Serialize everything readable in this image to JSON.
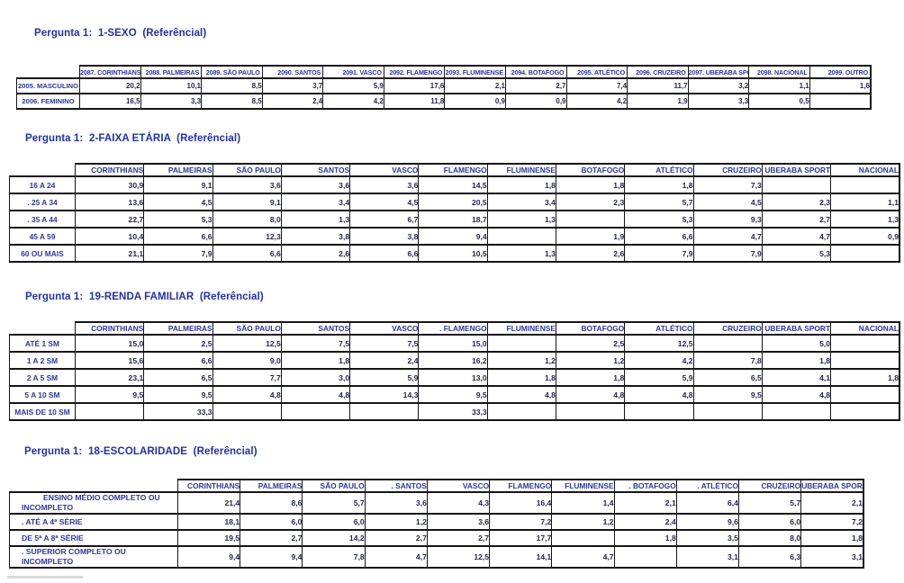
{
  "colors": {
    "title_text": "#2030b2",
    "header_text": "#2c36a4",
    "value_text": "#23284e",
    "border": "#161616",
    "background": "#ffffff"
  },
  "tables": [
    {
      "title": "Pergunta 1:  1-SEXO  (Referêncial)",
      "columns": [
        "2087. CORINTHIANS",
        "2088. PALMEIRAS",
        "2089. SÃO PAULO",
        "2090. SANTOS",
        "2091. VASCO",
        "2092. FLAMENGO",
        "2093. FLUMINENSE",
        "2094. BOTAFOGO",
        "2095. ATLÉTICO",
        "2096. CRUZEIRO",
        "2097. UBERABA SPORT",
        "2098. NACIONAL",
        "2099. OUTRO"
      ],
      "rows": [
        {
          "label": "2005. MASCULINO",
          "values": [
            "20,2",
            "10,1",
            "8,5",
            "3,7",
            "5,9",
            "17,6",
            "2,1",
            "2,7",
            "7,4",
            "11,7",
            "3,2",
            "1,1",
            "1,6"
          ]
        },
        {
          "label": "2006. FEMININO",
          "values": [
            "16,5",
            "3,3",
            "8,5",
            "2,4",
            "4,2",
            "11,8",
            "0,9",
            "0,9",
            "4,2",
            "1,9",
            "3,3",
            "0,5",
            ""
          ]
        }
      ]
    },
    {
      "title": "Pergunta 1:  2-FAIXA ETÁRIA  (Referêncial)",
      "columns": [
        "CORINTHIANS",
        "PALMEIRAS",
        "SÃO PAULO",
        "SANTOS",
        "VASCO",
        "FLAMENGO",
        "FLUMINENSE",
        "BOTAFOGO",
        "ATLÉTICO",
        "CRUZEIRO",
        "UBERABA SPORT",
        "NACIONAL"
      ],
      "rows": [
        {
          "label": "16 A 24",
          "values": [
            "30,9",
            "9,1",
            "3,6",
            "3,6",
            "3,6",
            "14,5",
            "1,8",
            "1,8",
            "1,8",
            "7,3",
            "",
            ""
          ]
        },
        {
          "label": ". 25 A 34",
          "values": [
            "13,6",
            "4,5",
            "9,1",
            "3,4",
            "4,5",
            "20,5",
            "3,4",
            "2,3",
            "5,7",
            "4,5",
            "2,3",
            "1,1"
          ]
        },
        {
          "label": ". 35 A 44",
          "values": [
            "22,7",
            "5,3",
            "8,0",
            "1,3",
            "6,7",
            "18,7",
            "1,3",
            "",
            "5,3",
            "9,3",
            "2,7",
            "1,3"
          ]
        },
        {
          "label": "45 A 59",
          "values": [
            "10,4",
            "6,6",
            "12,3",
            "3,8",
            "3,8",
            "9,4",
            "",
            "1,9",
            "6,6",
            "4,7",
            "4,7",
            "0,9"
          ]
        },
        {
          "label": "60 OU MAIS",
          "values": [
            "21,1",
            "7,9",
            "6,6",
            "2,6",
            "6,6",
            "10,5",
            "1,3",
            "2,6",
            "7,9",
            "7,9",
            "5,3",
            ""
          ]
        }
      ]
    },
    {
      "title": "Pergunta 1:  19-RENDA FAMILIAR  (Referêncial)",
      "columns": [
        "CORINTHIANS",
        "PALMEIRAS",
        "SÃO PAULO",
        "SANTOS",
        "VASCO",
        ". FLAMENGO",
        "FLUMINENSE",
        "BOTAFOGO",
        "ATLÉTICO",
        "CRUZEIRO",
        "UBERABA SPORT",
        "NACIONAL"
      ],
      "rows": [
        {
          "label": "ATÉ 1 SM",
          "values": [
            "15,0",
            "2,5",
            "12,5",
            "7,5",
            "7,5",
            "15,0",
            "",
            "2,5",
            "12,5",
            "",
            "5,0",
            ""
          ]
        },
        {
          "label": "1 A 2 SM",
          "values": [
            "15,6",
            "6,6",
            "9,0",
            "1,8",
            "2,4",
            "16,2",
            "1,2",
            "1,2",
            "4,2",
            "7,8",
            "1,8",
            ""
          ]
        },
        {
          "label": "2 A 5 SM",
          "values": [
            "23,1",
            "6,5",
            "7,7",
            "3,0",
            "5,9",
            "13,0",
            "1,8",
            "1,8",
            "5,9",
            "6,5",
            "4,1",
            "1,8"
          ]
        },
        {
          "label": "5 A 10 SM",
          "values": [
            "9,5",
            "9,5",
            "4,8",
            "4,8",
            "14,3",
            "9,5",
            "4,8",
            "4,8",
            "4,8",
            "9,5",
            "4,8",
            ""
          ]
        },
        {
          "label": "MAIS DE 10 SM",
          "values": [
            "",
            "33,3",
            "",
            "",
            "",
            "33,3",
            "",
            "",
            "",
            "",
            "",
            ""
          ]
        }
      ]
    },
    {
      "title": "Pergunta 1:  18-ESCOLARIDADE  (Referêncial)",
      "columns": [
        "CORINTHIANS",
        "PALMEIRAS",
        "SÃO PAULO",
        ". SANTOS",
        "VASCO",
        "FLAMENGO",
        "FLUMINENSE",
        ". BOTAFOGO",
        ". ATLÉTICO",
        "CRUZEIRO",
        "UBERABA SPORT"
      ],
      "rows": [
        {
          "label": "ENSINO MÉDIO COMPLETO OU INCOMPLETO",
          "values": [
            "21,4",
            "8,6",
            "5,7",
            "3,6",
            "4,3",
            "16,4",
            "1,4",
            "2,1",
            "6,4",
            "5,7",
            "2,1"
          ]
        },
        {
          "label": ". ATÉ A 4ª SÉRIE",
          "values": [
            "18,1",
            "6,0",
            "6,0",
            "1,2",
            "3,6",
            "7,2",
            "1,2",
            "2,4",
            "9,6",
            "6,0",
            "7,2"
          ]
        },
        {
          "label": "DE 5ª A 8ª SÉRIE",
          "values": [
            "19,5",
            "2,7",
            "14,2",
            "2,7",
            "2,7",
            "17,7",
            "",
            "1,8",
            "3,5",
            "8,0",
            "1,8"
          ]
        },
        {
          "label": ". SUPERIOR COMPLETO OU INCOMPLETO",
          "values": [
            "9,4",
            "9,4",
            "7,8",
            "4,7",
            "12,5",
            "14,1",
            "4,7",
            "",
            "3,1",
            "6,3",
            "3,1"
          ]
        }
      ]
    }
  ]
}
